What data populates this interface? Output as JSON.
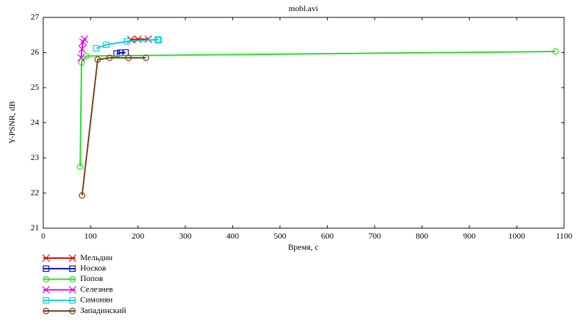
{
  "chart_data": {
    "type": "line",
    "title": "mobl.avi",
    "x_label": "Время, с",
    "y_label": "Y-PSNR, dB",
    "xlim": [
      0,
      1100
    ],
    "ylim": [
      21,
      27
    ],
    "xticks": [
      0,
      100,
      200,
      300,
      400,
      500,
      600,
      700,
      800,
      900,
      1000,
      1100
    ],
    "yticks": [
      21,
      22,
      23,
      24,
      25,
      26,
      27
    ],
    "grid": false,
    "legend": "bottom-left",
    "series": [
      {
        "name": "Мельдин",
        "color": "#e00000",
        "marker": "x",
        "x": [
          185,
          200,
          222
        ],
        "values": [
          26.37,
          26.38,
          26.38
        ]
      },
      {
        "name": "Носков",
        "color": "#0000c0",
        "marker": "square",
        "x": [
          155,
          163,
          174
        ],
        "values": [
          25.97,
          25.99,
          26.0
        ]
      },
      {
        "name": "Попов",
        "color": "#22dd22",
        "marker": "circle",
        "x": [
          78,
          81,
          91,
          1082
        ],
        "values": [
          22.75,
          25.72,
          25.9,
          26.03
        ]
      },
      {
        "name": "Селезнев",
        "color": "#e000e0",
        "marker": "x",
        "x": [
          80,
          82,
          84,
          87
        ],
        "values": [
          25.85,
          26.1,
          26.3,
          26.38
        ]
      },
      {
        "name": "Симонян",
        "color": "#00d0e0",
        "marker": "square",
        "x": [
          112,
          133,
          177,
          242,
          244
        ],
        "values": [
          26.12,
          26.22,
          26.32,
          26.37,
          26.35
        ]
      },
      {
        "name": "Западинский",
        "color": "#7a3a10",
        "marker": "circle",
        "x": [
          82,
          115,
          140,
          180,
          217
        ],
        "values": [
          21.93,
          25.8,
          25.85,
          25.85,
          25.85
        ]
      }
    ]
  }
}
